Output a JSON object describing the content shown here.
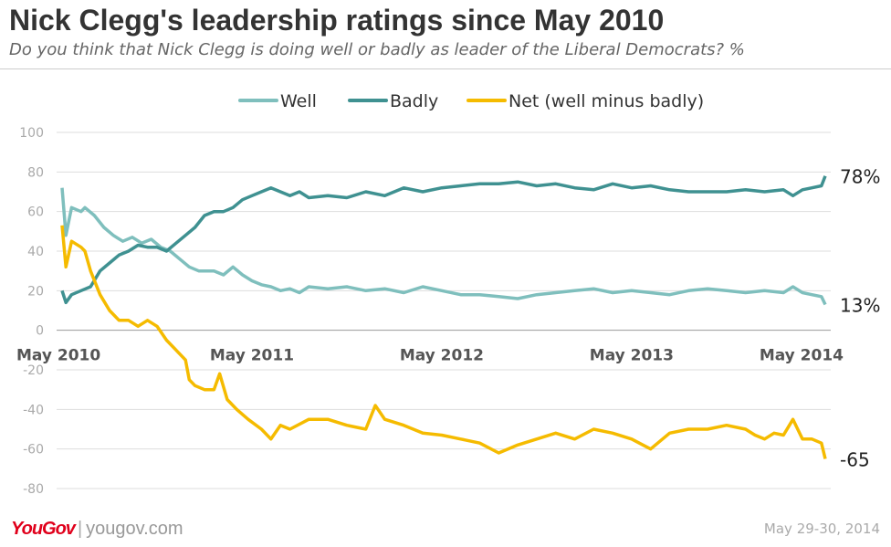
{
  "chart_data": {
    "type": "line",
    "title": "Nick Clegg's leadership ratings since May 2010",
    "subtitle": "Do you think that Nick Clegg is doing well or badly as leader of the Liberal Democrats? %",
    "ylim": [
      -80,
      100
    ],
    "yticks": [
      100,
      80,
      60,
      40,
      20,
      0,
      -20,
      -40,
      -60,
      -80
    ],
    "xlim": [
      2010.4,
      2014.42
    ],
    "xticks": [
      {
        "label": "May 2010",
        "x": 2010.4
      },
      {
        "label": "May 2011",
        "x": 2011.4
      },
      {
        "label": "May 2012",
        "x": 2012.4
      },
      {
        "label": "May 2013",
        "x": 2013.4
      },
      {
        "label": "May 2014",
        "x": 2014.4
      }
    ],
    "grid": true,
    "legend_position": "top",
    "series": [
      {
        "name": "Well",
        "color": "#7fbfbd",
        "end_label": "13%",
        "points": [
          [
            2010.4,
            72
          ],
          [
            2010.42,
            48
          ],
          [
            2010.45,
            62
          ],
          [
            2010.5,
            60
          ],
          [
            2010.52,
            62
          ],
          [
            2010.57,
            58
          ],
          [
            2010.62,
            52
          ],
          [
            2010.67,
            48
          ],
          [
            2010.72,
            45
          ],
          [
            2010.77,
            47
          ],
          [
            2010.82,
            44
          ],
          [
            2010.87,
            46
          ],
          [
            2010.92,
            42
          ],
          [
            2010.97,
            40
          ],
          [
            2011.02,
            36
          ],
          [
            2011.07,
            32
          ],
          [
            2011.12,
            30
          ],
          [
            2011.2,
            30
          ],
          [
            2011.25,
            28
          ],
          [
            2011.3,
            32
          ],
          [
            2011.35,
            28
          ],
          [
            2011.4,
            25
          ],
          [
            2011.45,
            23
          ],
          [
            2011.5,
            22
          ],
          [
            2011.55,
            20
          ],
          [
            2011.6,
            21
          ],
          [
            2011.65,
            19
          ],
          [
            2011.7,
            22
          ],
          [
            2011.8,
            21
          ],
          [
            2011.9,
            22
          ],
          [
            2012.0,
            20
          ],
          [
            2012.1,
            21
          ],
          [
            2012.2,
            19
          ],
          [
            2012.3,
            22
          ],
          [
            2012.4,
            20
          ],
          [
            2012.5,
            18
          ],
          [
            2012.6,
            18
          ],
          [
            2012.7,
            17
          ],
          [
            2012.8,
            16
          ],
          [
            2012.9,
            18
          ],
          [
            2013.0,
            19
          ],
          [
            2013.1,
            20
          ],
          [
            2013.2,
            21
          ],
          [
            2013.3,
            19
          ],
          [
            2013.4,
            20
          ],
          [
            2013.5,
            19
          ],
          [
            2013.6,
            18
          ],
          [
            2013.7,
            20
          ],
          [
            2013.8,
            21
          ],
          [
            2013.9,
            20
          ],
          [
            2014.0,
            19
          ],
          [
            2014.1,
            20
          ],
          [
            2014.2,
            19
          ],
          [
            2014.25,
            22
          ],
          [
            2014.3,
            19
          ],
          [
            2014.35,
            18
          ],
          [
            2014.4,
            17
          ],
          [
            2014.42,
            13
          ]
        ]
      },
      {
        "name": "Badly",
        "color": "#3f9191",
        "end_label": "78%",
        "points": [
          [
            2010.4,
            20
          ],
          [
            2010.42,
            14
          ],
          [
            2010.45,
            18
          ],
          [
            2010.5,
            20
          ],
          [
            2010.55,
            22
          ],
          [
            2010.6,
            30
          ],
          [
            2010.65,
            34
          ],
          [
            2010.7,
            38
          ],
          [
            2010.75,
            40
          ],
          [
            2010.8,
            43
          ],
          [
            2010.85,
            42
          ],
          [
            2010.9,
            42
          ],
          [
            2010.95,
            40
          ],
          [
            2011.0,
            44
          ],
          [
            2011.05,
            48
          ],
          [
            2011.1,
            52
          ],
          [
            2011.15,
            58
          ],
          [
            2011.2,
            60
          ],
          [
            2011.25,
            60
          ],
          [
            2011.3,
            62
          ],
          [
            2011.35,
            66
          ],
          [
            2011.4,
            68
          ],
          [
            2011.45,
            70
          ],
          [
            2011.5,
            72
          ],
          [
            2011.55,
            70
          ],
          [
            2011.6,
            68
          ],
          [
            2011.65,
            70
          ],
          [
            2011.7,
            67
          ],
          [
            2011.8,
            68
          ],
          [
            2011.9,
            67
          ],
          [
            2012.0,
            70
          ],
          [
            2012.1,
            68
          ],
          [
            2012.2,
            72
          ],
          [
            2012.3,
            70
          ],
          [
            2012.4,
            72
          ],
          [
            2012.5,
            73
          ],
          [
            2012.6,
            74
          ],
          [
            2012.7,
            74
          ],
          [
            2012.8,
            75
          ],
          [
            2012.9,
            73
          ],
          [
            2013.0,
            74
          ],
          [
            2013.1,
            72
          ],
          [
            2013.2,
            71
          ],
          [
            2013.3,
            74
          ],
          [
            2013.4,
            72
          ],
          [
            2013.5,
            73
          ],
          [
            2013.6,
            71
          ],
          [
            2013.7,
            70
          ],
          [
            2013.8,
            70
          ],
          [
            2013.9,
            70
          ],
          [
            2014.0,
            71
          ],
          [
            2014.1,
            70
          ],
          [
            2014.2,
            71
          ],
          [
            2014.25,
            68
          ],
          [
            2014.3,
            71
          ],
          [
            2014.35,
            72
          ],
          [
            2014.4,
            73
          ],
          [
            2014.42,
            78
          ]
        ]
      },
      {
        "name": "Net (well minus badly)",
        "color": "#f5bb00",
        "end_label": "-65",
        "points": [
          [
            2010.4,
            53
          ],
          [
            2010.42,
            32
          ],
          [
            2010.45,
            45
          ],
          [
            2010.5,
            42
          ],
          [
            2010.52,
            40
          ],
          [
            2010.55,
            30
          ],
          [
            2010.6,
            18
          ],
          [
            2010.65,
            10
          ],
          [
            2010.7,
            5
          ],
          [
            2010.75,
            5
          ],
          [
            2010.8,
            2
          ],
          [
            2010.85,
            5
          ],
          [
            2010.9,
            2
          ],
          [
            2010.95,
            -5
          ],
          [
            2011.0,
            -10
          ],
          [
            2011.05,
            -15
          ],
          [
            2011.07,
            -25
          ],
          [
            2011.1,
            -28
          ],
          [
            2011.15,
            -30
          ],
          [
            2011.2,
            -30
          ],
          [
            2011.23,
            -22
          ],
          [
            2011.27,
            -35
          ],
          [
            2011.32,
            -40
          ],
          [
            2011.38,
            -45
          ],
          [
            2011.45,
            -50
          ],
          [
            2011.5,
            -55
          ],
          [
            2011.55,
            -48
          ],
          [
            2011.6,
            -50
          ],
          [
            2011.7,
            -45
          ],
          [
            2011.8,
            -45
          ],
          [
            2011.9,
            -48
          ],
          [
            2012.0,
            -50
          ],
          [
            2012.05,
            -38
          ],
          [
            2012.1,
            -45
          ],
          [
            2012.2,
            -48
          ],
          [
            2012.3,
            -52
          ],
          [
            2012.4,
            -53
          ],
          [
            2012.5,
            -55
          ],
          [
            2012.6,
            -57
          ],
          [
            2012.7,
            -62
          ],
          [
            2012.8,
            -58
          ],
          [
            2012.9,
            -55
          ],
          [
            2013.0,
            -52
          ],
          [
            2013.1,
            -55
          ],
          [
            2013.2,
            -50
          ],
          [
            2013.3,
            -52
          ],
          [
            2013.4,
            -55
          ],
          [
            2013.5,
            -60
          ],
          [
            2013.6,
            -52
          ],
          [
            2013.7,
            -50
          ],
          [
            2013.8,
            -50
          ],
          [
            2013.9,
            -48
          ],
          [
            2014.0,
            -50
          ],
          [
            2014.05,
            -53
          ],
          [
            2014.1,
            -55
          ],
          [
            2014.15,
            -52
          ],
          [
            2014.2,
            -53
          ],
          [
            2014.25,
            -45
          ],
          [
            2014.3,
            -55
          ],
          [
            2014.35,
            -55
          ],
          [
            2014.4,
            -57
          ],
          [
            2014.42,
            -65
          ]
        ]
      }
    ]
  },
  "footer": {
    "brand": "YouGov",
    "site": "yougov.com",
    "date": "May 29-30, 2014"
  }
}
